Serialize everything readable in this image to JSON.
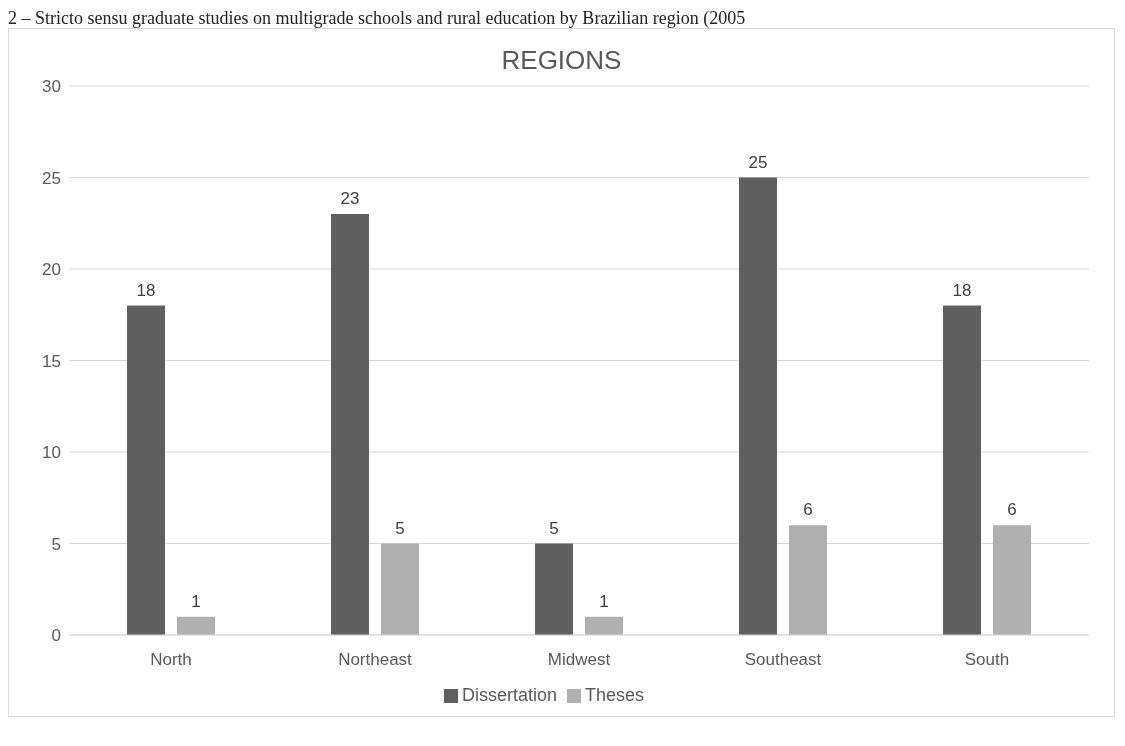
{
  "chart_data": {
    "type": "bar",
    "title": "REGIONS",
    "annotations": [
      "2 – Stricto sensu graduate studies on multigrade schools and rural education by Brazilian region (2005"
    ],
    "categories": [
      "North",
      "Northeast",
      "Midwest",
      "Southeast",
      "South"
    ],
    "series": [
      {
        "name": "Dissertation",
        "color": "#5f5f5f",
        "values": [
          18,
          23,
          5,
          25,
          18
        ]
      },
      {
        "name": "Theses",
        "color": "#b0b0b0",
        "values": [
          1,
          5,
          1,
          6,
          6
        ]
      }
    ],
    "ylim": [
      0,
      30
    ],
    "yticks": [
      0,
      5,
      10,
      15,
      20,
      25,
      30
    ],
    "grid": "y",
    "legend": "bottom",
    "data_labels": true
  }
}
